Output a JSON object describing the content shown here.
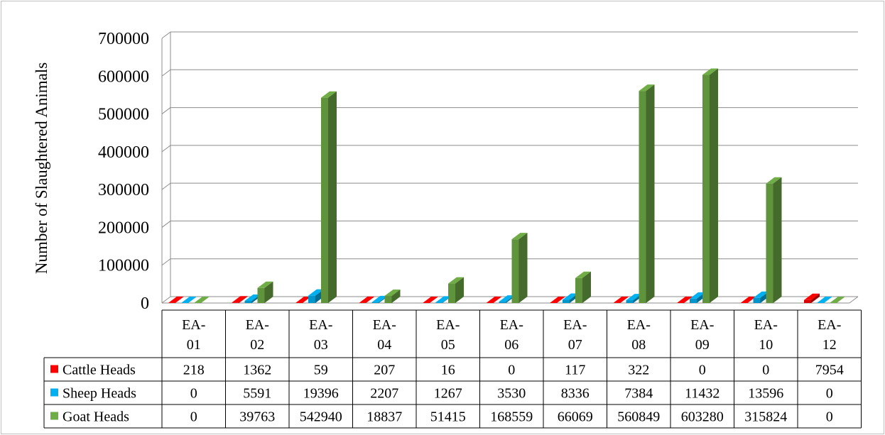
{
  "chart_data": {
    "type": "bar",
    "ylabel": "Number of Slaughtered Animals",
    "ylim": [
      0,
      700000
    ],
    "yticks": [
      0,
      100000,
      200000,
      300000,
      400000,
      500000,
      600000,
      700000
    ],
    "ytick_labels": [
      "0",
      "100000",
      "200000",
      "300000",
      "400000",
      "500000",
      "600000",
      "700000"
    ],
    "categories": [
      [
        "EA-",
        "01"
      ],
      [
        "EA-",
        "02"
      ],
      [
        "EA-",
        "03"
      ],
      [
        "EA-",
        "04"
      ],
      [
        "EA-",
        "05"
      ],
      [
        "EA-",
        "06"
      ],
      [
        "EA-",
        "07"
      ],
      [
        "EA-",
        "08"
      ],
      [
        "EA-",
        "09"
      ],
      [
        "EA-",
        "10"
      ],
      [
        "EA-",
        "12"
      ]
    ],
    "grid": true,
    "legend": "data-table",
    "series": [
      {
        "name": "Cattle Heads",
        "color": "#ff0000",
        "values": [
          218,
          1362,
          59,
          207,
          16,
          0,
          117,
          322,
          0,
          0,
          7954
        ],
        "labels": [
          "218",
          "1362",
          "59",
          "207",
          "16",
          "0",
          "117",
          "322",
          "0",
          "0",
          "7954"
        ]
      },
      {
        "name": "Sheep Heads",
        "color": "#00b0f0",
        "values": [
          0,
          5591,
          19396,
          2207,
          1267,
          3530,
          8336,
          7384,
          11432,
          13596,
          0
        ],
        "labels": [
          "0",
          "5591",
          "19396",
          "2207",
          "1267",
          "3530",
          "8336",
          "7384",
          "11432",
          "13596",
          "0"
        ]
      },
      {
        "name": "Goat Heads",
        "color": "#70ad47",
        "values": [
          0,
          39763,
          542940,
          18837,
          51415,
          168559,
          66069,
          560849,
          603280,
          315824,
          0
        ],
        "labels": [
          "0",
          "39763",
          "542940",
          "18837",
          "51415",
          "168559",
          "66069",
          "560849",
          "603280",
          "315824",
          "0"
        ]
      }
    ]
  }
}
